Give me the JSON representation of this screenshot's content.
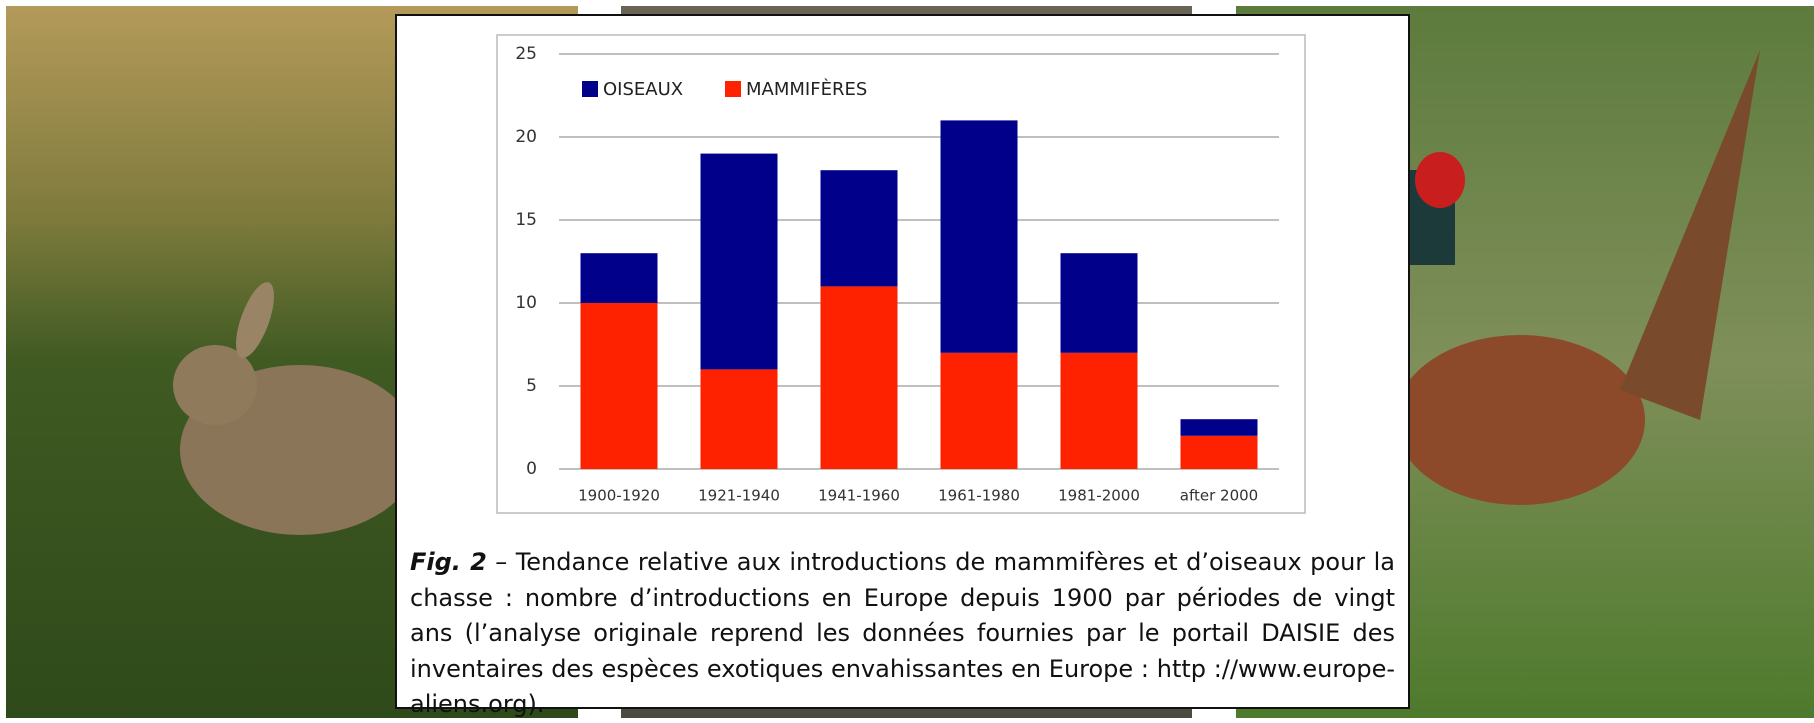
{
  "chart_data": {
    "type": "stacked-bar",
    "categories": [
      "1900-1920",
      "1921-1940",
      "1941-1960",
      "1961-1980",
      "1981-2000",
      "after 2000"
    ],
    "series": [
      {
        "name": "OISEAUX",
        "color": "#00008b",
        "values": [
          3,
          13,
          7,
          14,
          6,
          1
        ]
      },
      {
        "name": "MAMMIFÈRES",
        "color": "#ff2200",
        "values": [
          10,
          6,
          11,
          7,
          7,
          2
        ]
      }
    ],
    "ylim": [
      0,
      25
    ],
    "yticks": [
      0,
      5,
      10,
      15,
      20,
      25
    ],
    "grid": true,
    "legend": "top-left"
  },
  "caption": {
    "label": "Fig. 2",
    "text": " – Tendance relative aux introductions de mammifères et d’oiseaux pour la chasse : nombre d’introductions en Europe depuis 1900 par périodes de vingt ans (l’analyse originale reprend les données fournies par le portail DAISIE des inventaires des espèces exotiques envahissantes en Europe : http ://www.europe-aliens.org)."
  }
}
